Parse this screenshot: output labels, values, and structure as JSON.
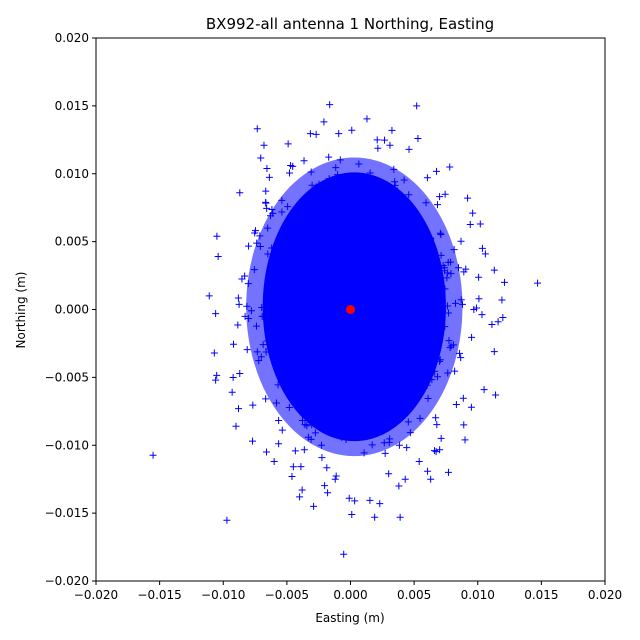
{
  "chart_data": {
    "type": "scatter",
    "title": "BX992-all antenna 1 Northing, Easting",
    "xlabel": "Easting (m)",
    "ylabel": "Northing (m)",
    "xlim": [
      -0.02,
      0.02
    ],
    "ylim": [
      -0.02,
      0.02
    ],
    "xticks": [
      -0.02,
      -0.015,
      -0.01,
      -0.005,
      0.0,
      0.005,
      0.01,
      0.015,
      0.02
    ],
    "yticks": [
      -0.02,
      -0.015,
      -0.01,
      -0.005,
      0.0,
      0.005,
      0.01,
      0.015,
      0.02
    ],
    "xtick_labels": [
      "−0.020",
      "−0.015",
      "−0.010",
      "−0.005",
      "0.000",
      "0.005",
      "0.010",
      "0.015",
      "0.020"
    ],
    "ytick_labels": [
      "−0.020",
      "−0.015",
      "−0.010",
      "−0.005",
      "0.000",
      "0.005",
      "0.010",
      "0.015",
      "0.020"
    ],
    "grid": false,
    "series": [
      {
        "marker": "+",
        "color": "#0000ff",
        "points": [
          [
            0.0052,
            0.015
          ],
          [
            0.0053,
            0.0126
          ],
          [
            -0.0027,
            0.0129
          ],
          [
            0.0001,
            0.0132
          ],
          [
            0.0021,
            0.0125
          ],
          [
            -0.0049,
            0.0122
          ],
          [
            0.0031,
            0.0121
          ],
          [
            -0.0068,
            0.0121
          ],
          [
            0.0046,
            0.0118
          ],
          [
            0.0078,
            0.0105
          ],
          [
            0.0092,
            0.0082
          ],
          [
            -0.0087,
            0.0086
          ],
          [
            0.0096,
            0.0071
          ],
          [
            -0.0105,
            0.0054
          ],
          [
            0.0102,
            0.0063
          ],
          [
            -0.0104,
            0.0039
          ],
          [
            0.0106,
            0.0041
          ],
          [
            -0.0111,
            0.001
          ],
          [
            0.0113,
            0.0029
          ],
          [
            0.0121,
            0.002
          ],
          [
            0.0119,
            0.0007
          ],
          [
            -0.0106,
            -0.0003
          ],
          [
            0.0116,
            -0.0009
          ],
          [
            -0.0107,
            -0.0032
          ],
          [
            0.0113,
            -0.0031
          ],
          [
            -0.0106,
            -0.0052
          ],
          [
            0.0105,
            -0.0059
          ],
          [
            -0.0093,
            -0.0061
          ],
          [
            0.0114,
            -0.0063
          ],
          [
            -0.0088,
            -0.0073
          ],
          [
            0.0095,
            -0.0072
          ],
          [
            -0.009,
            -0.0086
          ],
          [
            0.0089,
            -0.0085
          ],
          [
            -0.0077,
            -0.0097
          ],
          [
            0.009,
            -0.0096
          ],
          [
            -0.0066,
            -0.0105
          ],
          [
            0.0066,
            -0.0104
          ],
          [
            -0.0046,
            -0.0123
          ],
          [
            0.0077,
            -0.012
          ],
          [
            -0.0038,
            -0.0133
          ],
          [
            0.0063,
            -0.0125
          ],
          [
            -0.004,
            -0.0138
          ],
          [
            0.0043,
            -0.0125
          ],
          [
            -0.0029,
            -0.0145
          ],
          [
            0.0038,
            -0.013
          ],
          [
            -0.0018,
            -0.0135
          ],
          [
            0.0023,
            -0.0143
          ],
          [
            -0.0001,
            -0.0139
          ],
          [
            0.0019,
            -0.0153
          ],
          [
            0.0001,
            -0.0151
          ],
          [
            0.0039,
            -0.0153
          ],
          [
            -0.0012,
            -0.0125
          ],
          [
            0.003,
            -0.0121
          ],
          [
            -0.006,
            -0.0112
          ],
          [
            0.0054,
            -0.0112
          ]
        ]
      },
      {
        "marker": "o",
        "color": "#ff0000",
        "points": [
          [
            0.0,
            0.0
          ]
        ]
      }
    ]
  }
}
